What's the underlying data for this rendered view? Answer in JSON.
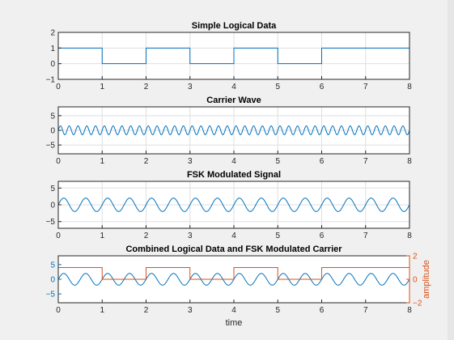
{
  "figure": {
    "background": "#f0f0f0",
    "axes_background": "#ffffff",
    "axis_color": "#262626",
    "grid_color": "#dfdfdf",
    "series_color": "#0072bd",
    "second_series_color": "#d95319"
  },
  "chart_data": [
    {
      "type": "line",
      "title": "Simple Logical Data",
      "xlim": [
        0,
        8
      ],
      "ylim": [
        -1,
        2
      ],
      "xticks": [
        0,
        1,
        2,
        3,
        4,
        5,
        6,
        7,
        8
      ],
      "yticks": [
        -1,
        0,
        1,
        2
      ],
      "grid": true,
      "series": [
        {
          "step": true,
          "x": [
            0,
            1,
            1,
            2,
            2,
            3,
            3,
            4,
            4,
            5,
            5,
            6,
            6,
            8
          ],
          "y": [
            1,
            1,
            0,
            0,
            1,
            1,
            0,
            0,
            1,
            1,
            0,
            0,
            1,
            1
          ]
        }
      ]
    },
    {
      "type": "line",
      "title": "Carrier Wave",
      "xlim": [
        0,
        8
      ],
      "ylim": [
        -8,
        8
      ],
      "xticks": [
        0,
        1,
        2,
        3,
        4,
        5,
        6,
        7,
        8
      ],
      "yticks": [
        -5,
        0,
        5
      ],
      "grid": true,
      "series": [
        {
          "function": "sine",
          "amplitude": 1.5,
          "cycles_per_unit": 5,
          "x_range": [
            0,
            8
          ]
        }
      ]
    },
    {
      "type": "line",
      "title": "FSK Modulated Signal",
      "xlim": [
        0,
        8
      ],
      "ylim": [
        -7,
        7
      ],
      "xticks": [
        0,
        1,
        2,
        3,
        4,
        5,
        6,
        7,
        8
      ],
      "yticks": [
        -5,
        0,
        5
      ],
      "grid": true,
      "series": [
        {
          "function": "sine",
          "amplitude": 2,
          "cycles_per_unit": 2,
          "x_range": [
            0,
            8
          ]
        }
      ]
    },
    {
      "type": "line",
      "title": "Combined Logical Data and FSK Modulated Carrier",
      "xlabel": "time",
      "ylabel_right": "amplitude",
      "xlim": [
        0,
        8
      ],
      "ylim": [
        -8,
        8
      ],
      "ylim_right": [
        -2,
        2
      ],
      "xticks": [
        0,
        1,
        2,
        3,
        4,
        5,
        6,
        7,
        8
      ],
      "yticks": [
        -5,
        0,
        5
      ],
      "yticks_right": [
        -2,
        0,
        2
      ],
      "grid": false,
      "series": [
        {
          "axis": "left",
          "function": "sine",
          "amplitude": 2,
          "cycles_per_unit": 2,
          "x_range": [
            0,
            8
          ]
        },
        {
          "axis": "right",
          "step": true,
          "x": [
            0,
            1,
            1,
            2,
            2,
            3,
            3,
            4,
            4,
            5,
            5,
            6,
            6,
            8
          ],
          "y": [
            1,
            1,
            0,
            0,
            1,
            1,
            0,
            0,
            1,
            1,
            0,
            0,
            1,
            1
          ]
        }
      ]
    }
  ]
}
